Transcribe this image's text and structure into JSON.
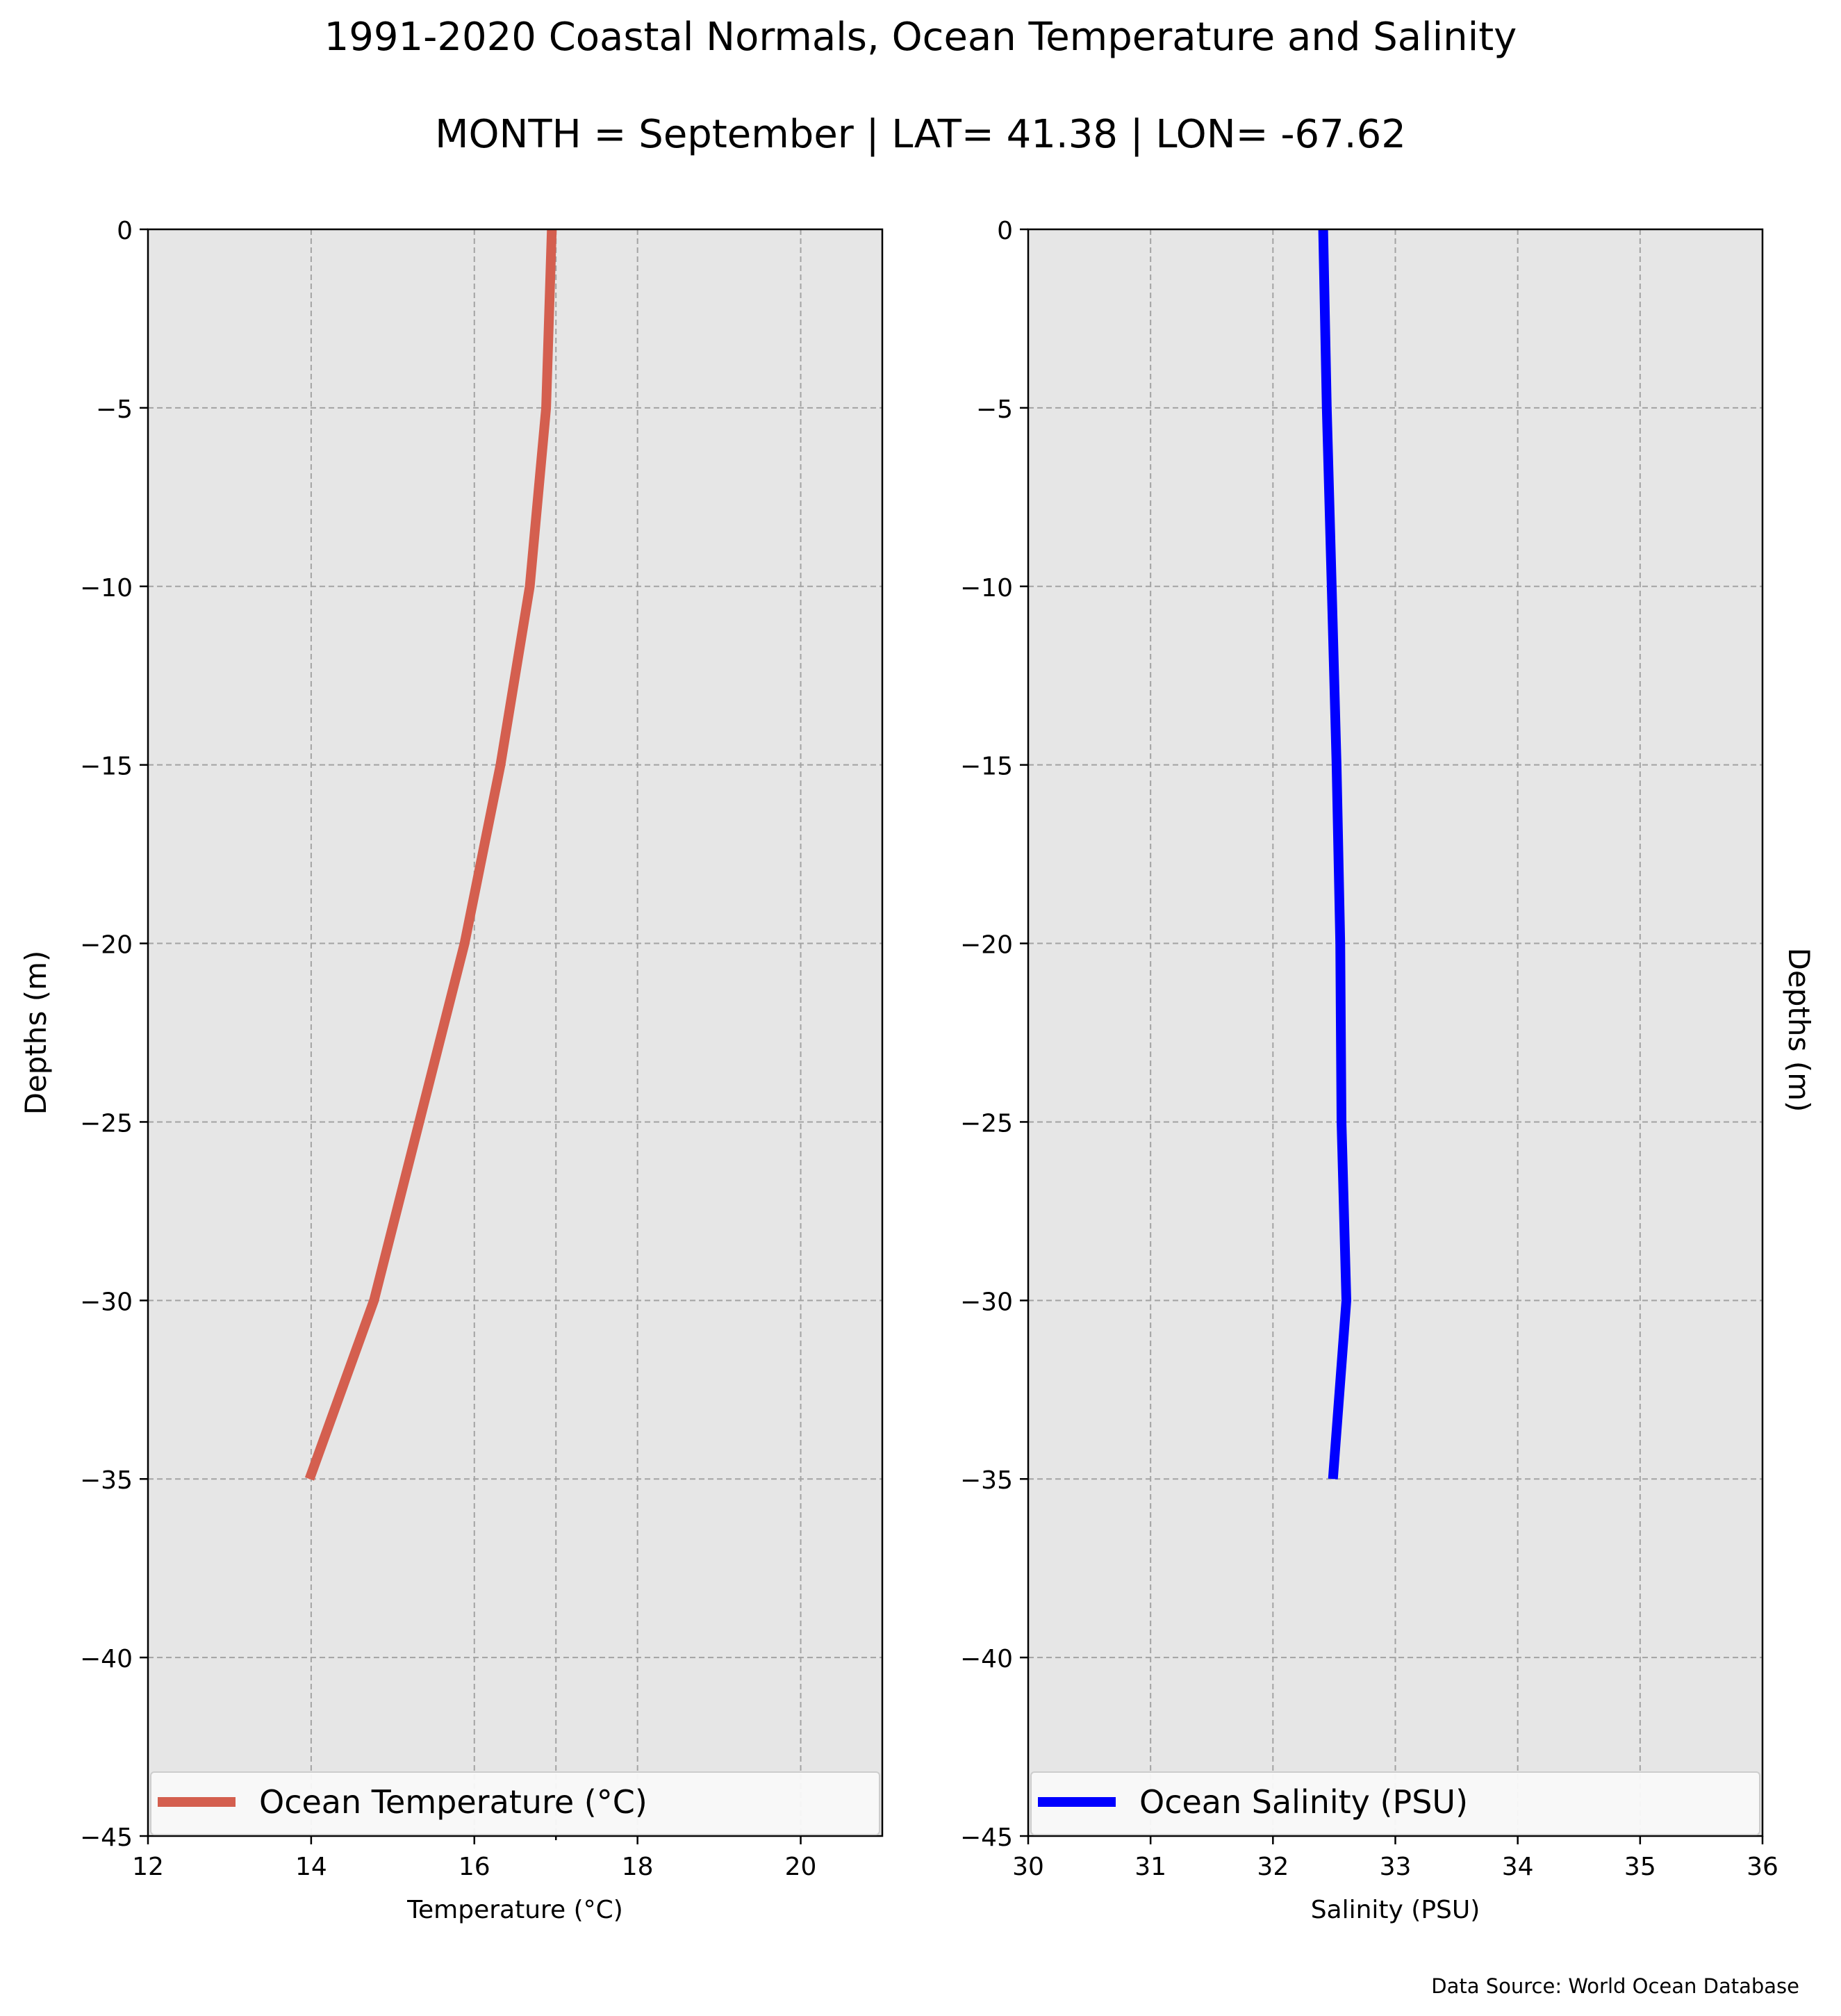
{
  "title": "1991-2020 Coastal Normals, Ocean Temperature and Salinity",
  "subtitle": "MONTH = September | LAT= 41.38 | LON= -67.62",
  "source": "Data Source: World Ocean Database",
  "chart_data": [
    {
      "type": "line",
      "xlabel": "Temperature ($^\\circ$C)",
      "xlabel_display": "Temperature (°C)",
      "ylabel": "Depths (m)",
      "xlim": [
        12,
        21
      ],
      "ylim": [
        -45,
        0
      ],
      "xticks": [
        12,
        14,
        16,
        18,
        20
      ],
      "yticks": [
        0,
        -5,
        -10,
        -15,
        -20,
        -25,
        -30,
        -35,
        -40,
        -45
      ],
      "grid": true,
      "legend_position": "lower center",
      "color": "#d45f4f",
      "series": [
        {
          "name": "Ocean Temperature (°C)",
          "x": [
            16.95,
            16.88,
            16.68,
            16.32,
            15.88,
            14.77,
            13.98
          ],
          "y": [
            0,
            -5,
            -10,
            -15,
            -20,
            -30,
            -35
          ]
        }
      ]
    },
    {
      "type": "line",
      "xlabel": "Salinity (PSU)",
      "ylabel": "Depths (m)",
      "xlim": [
        30,
        36
      ],
      "ylim": [
        -45,
        0
      ],
      "xticks": [
        30,
        31,
        32,
        33,
        34,
        35,
        36
      ],
      "yticks": [
        0,
        -5,
        -10,
        -15,
        -20,
        -25,
        -30,
        -35,
        -40,
        -45
      ],
      "grid": true,
      "legend_position": "lower center",
      "color": "#0000ff",
      "series": [
        {
          "name": "Ocean Salinity (PSU)",
          "x": [
            32.41,
            32.44,
            32.48,
            32.52,
            32.55,
            32.56,
            32.6,
            32.49
          ],
          "y": [
            0,
            -5,
            -10,
            -15,
            -20,
            -25,
            -30,
            -35
          ]
        }
      ]
    }
  ]
}
